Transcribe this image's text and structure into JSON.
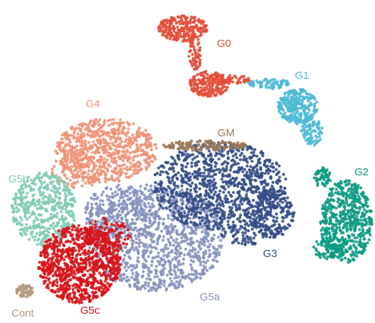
{
  "chart_data": {
    "type": "cluster-map",
    "series": [
      {
        "name": "G4",
        "color": "#ef9479"
      },
      {
        "name": "G5b",
        "color": "#80cbb5"
      },
      {
        "name": "G5a",
        "color": "#8592bd"
      },
      {
        "name": "G3",
        "color": "#344c87"
      },
      {
        "name": "GM",
        "color": "#9a7657"
      },
      {
        "name": "G5c",
        "color": "#d8141a"
      },
      {
        "name": "G0",
        "color": "#e34f3a"
      },
      {
        "name": "G1",
        "color": "#4cb9d6"
      },
      {
        "name": "G2",
        "color": "#0d9a84"
      },
      {
        "name": "Cont",
        "color": "#b39a80"
      }
    ]
  }
}
